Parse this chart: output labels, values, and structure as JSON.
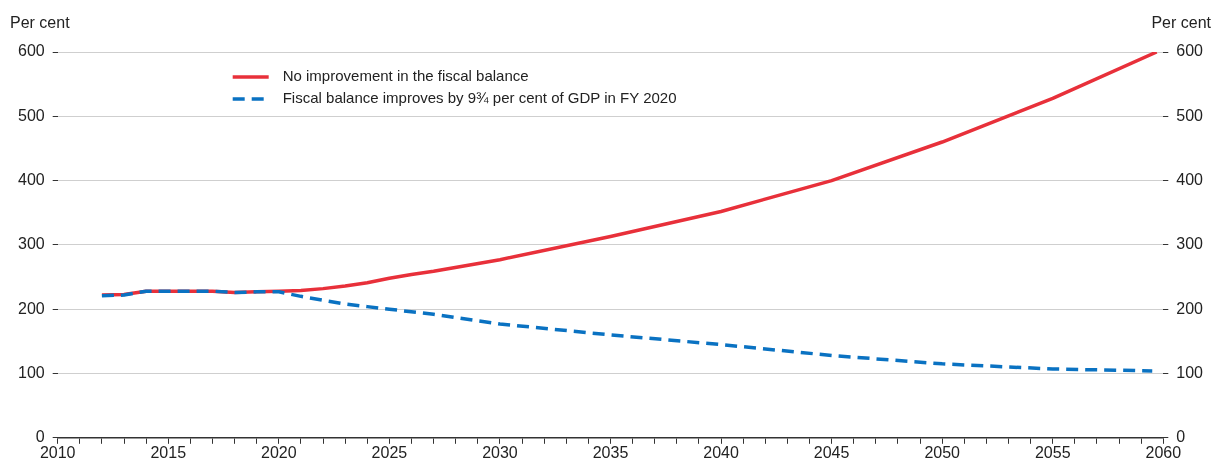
{
  "chart_data": {
    "type": "line",
    "ylabel": "Per cent",
    "y2label": "Per cent",
    "xlim": [
      2010,
      2060
    ],
    "xticks": [
      2010,
      {
        "value": 2011,
        "label": null
      },
      {
        "value": 2012,
        "label": null
      },
      {
        "value": 2013,
        "label": null
      },
      {
        "value": 2014,
        "label": null
      },
      2015,
      {
        "value": 2016,
        "label": null
      },
      {
        "value": 2017,
        "label": null
      },
      {
        "value": 2018,
        "label": null
      },
      {
        "value": 2019,
        "label": null
      },
      2020,
      {
        "value": 2021,
        "label": null
      },
      {
        "value": 2022,
        "label": null
      },
      {
        "value": 2023,
        "label": null
      },
      {
        "value": 2024,
        "label": null
      },
      2025,
      {
        "value": 2026,
        "label": null
      },
      {
        "value": 2027,
        "label": null
      },
      {
        "value": 2028,
        "label": null
      },
      {
        "value": 2029,
        "label": null
      },
      2030,
      {
        "value": 2031,
        "label": null
      },
      {
        "value": 2032,
        "label": null
      },
      {
        "value": 2033,
        "label": null
      },
      {
        "value": 2034,
        "label": null
      },
      2035,
      {
        "value": 2036,
        "label": null
      },
      {
        "value": 2037,
        "label": null
      },
      {
        "value": 2038,
        "label": null
      },
      {
        "value": 2039,
        "label": null
      },
      2040,
      {
        "value": 2041,
        "label": null
      },
      {
        "value": 2042,
        "label": null
      },
      {
        "value": 2043,
        "label": null
      },
      {
        "value": 2044,
        "label": null
      },
      2045,
      {
        "value": 2046,
        "label": null
      },
      {
        "value": 2047,
        "label": null
      },
      {
        "value": 2048,
        "label": null
      },
      {
        "value": 2049,
        "label": null
      },
      2050,
      {
        "value": 2051,
        "label": null
      },
      {
        "value": 2052,
        "label": null
      },
      {
        "value": 2053,
        "label": null
      },
      {
        "value": 2054,
        "label": null
      },
      2055,
      {
        "value": 2056,
        "label": null
      },
      {
        "value": 2057,
        "label": null
      },
      {
        "value": 2058,
        "label": null
      },
      {
        "value": 2059,
        "label": null
      },
      2060
    ],
    "ylim": [
      0,
      600
    ],
    "yticks": [
      0,
      100,
      200,
      300,
      400,
      500,
      600
    ],
    "y2lim": [
      0,
      600
    ],
    "y2ticks": [
      0,
      100,
      200,
      300,
      400,
      500,
      600
    ],
    "grid": "y",
    "legend": "top left",
    "marker": "none",
    "series": [
      {
        "name": "No improvement in the fiscal balance",
        "color": "#e8303a",
        "line_style": "solid",
        "x": [
          2012,
          2013,
          2014,
          2015,
          2016,
          2017,
          2018,
          2019,
          2020,
          2021,
          2022,
          2023,
          2024,
          2025,
          2026,
          2027,
          2030,
          2035,
          2040,
          2045,
          2050,
          2055,
          2059.7
        ],
        "values": [
          222,
          223,
          228,
          228,
          228,
          228,
          226,
          227,
          228,
          229,
          232,
          236,
          241,
          248,
          254,
          259,
          277,
          313,
          352,
          400,
          460,
          528,
          600
        ]
      },
      {
        "name": "Fiscal balance improves by 9¾ per cent of GDP in FY 2020",
        "color": "#0a72c2",
        "line_style": "dashed",
        "x": [
          2012,
          2013,
          2014,
          2015,
          2016,
          2017,
          2018,
          2019,
          2020,
          2021,
          2022,
          2023,
          2024,
          2025,
          2027,
          2030,
          2035,
          2040,
          2045,
          2050,
          2055,
          2059.5
        ],
        "values": [
          221,
          222,
          228,
          228,
          228,
          228,
          226,
          227,
          227,
          220,
          214,
          208,
          204,
          200,
          192,
          177,
          160,
          145,
          128,
          115,
          107,
          104
        ]
      }
    ]
  }
}
